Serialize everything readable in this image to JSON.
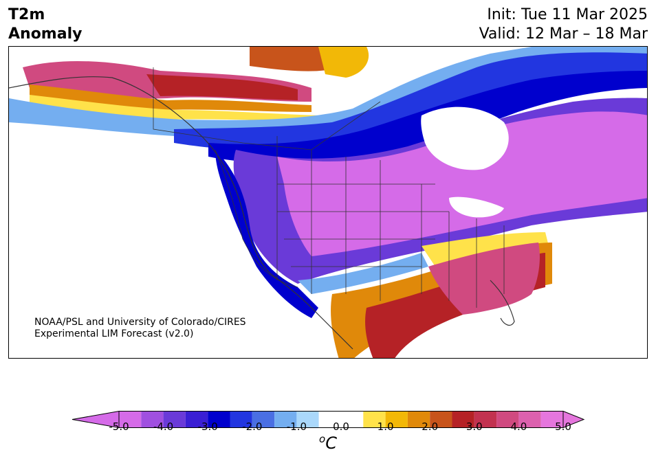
{
  "header": {
    "title_line1": "T2m",
    "title_line2": "Anomaly",
    "init_line": "Init: Tue 11 Mar 2025",
    "valid_line": "Valid: 12 Mar – 18 Mar"
  },
  "credit": {
    "line1": "NOAA/PSL and University of Colorado/CIRES",
    "line2": "Experimental LIM Forecast (v2.0)"
  },
  "colorbar": {
    "unit_base": "C",
    "unit_prefix": "o",
    "tick_labels": [
      "-5.0",
      "-4.0",
      "-3.0",
      "-2.0",
      "-1.0",
      "0.0",
      "1.0",
      "2.0",
      "3.0",
      "4.0",
      "5.0"
    ],
    "levels": [
      -5.0,
      -4.5,
      -4.0,
      -3.5,
      -3.0,
      -2.5,
      -2.0,
      -1.5,
      -1.0,
      -0.5,
      0.5,
      1.0,
      1.5,
      2.0,
      2.5,
      3.0,
      3.5,
      4.0,
      4.5,
      5.0
    ],
    "colors": [
      "#d56be8",
      "#a050e0",
      "#6a3ad8",
      "#3a1fd4",
      "#0000cd",
      "#2236e0",
      "#4a6fe3",
      "#74aef0",
      "#aad8fb",
      "#ffffff",
      "#ffe24a",
      "#f2b807",
      "#e0890a",
      "#c8541b",
      "#b52226",
      "#c23250",
      "#d04a80",
      "#dc61ae",
      "#e576dd"
    ],
    "under_color": "#d56be8",
    "over_color": "#e576dd"
  }
}
